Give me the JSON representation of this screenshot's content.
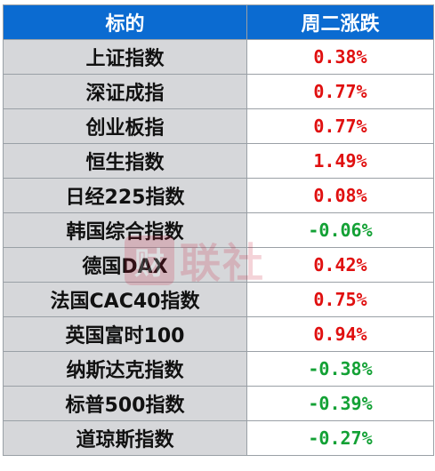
{
  "header": {
    "col1": "标的",
    "col2": "周二涨跌"
  },
  "rows": [
    {
      "name": "上证指数",
      "change": "0.38%",
      "direction": "up"
    },
    {
      "name": "深证成指",
      "change": "0.77%",
      "direction": "up"
    },
    {
      "name": "创业板指",
      "change": "0.77%",
      "direction": "up"
    },
    {
      "name": "恒生指数",
      "change": "1.49%",
      "direction": "up"
    },
    {
      "name": "日经225指数",
      "change": "0.08%",
      "direction": "up"
    },
    {
      "name": "韩国综合指数",
      "change": "-0.06%",
      "direction": "down"
    },
    {
      "name": "德国DAX",
      "change": "0.42%",
      "direction": "up"
    },
    {
      "name": "法国CAC40指数",
      "change": "0.75%",
      "direction": "up"
    },
    {
      "name": "英国富时100",
      "change": "0.94%",
      "direction": "up"
    },
    {
      "name": "纳斯达克指数",
      "change": "-0.38%",
      "direction": "down"
    },
    {
      "name": "标普500指数",
      "change": "-0.39%",
      "direction": "down"
    },
    {
      "name": "道琼斯指数",
      "change": "-0.27%",
      "direction": "down"
    }
  ],
  "colors": {
    "header_bg": "#0b6bd1",
    "name_bg": "#d6d7da",
    "up": "#e01010",
    "down": "#13a135"
  },
  "watermark": {
    "logo_char": "财",
    "text": "联社"
  }
}
